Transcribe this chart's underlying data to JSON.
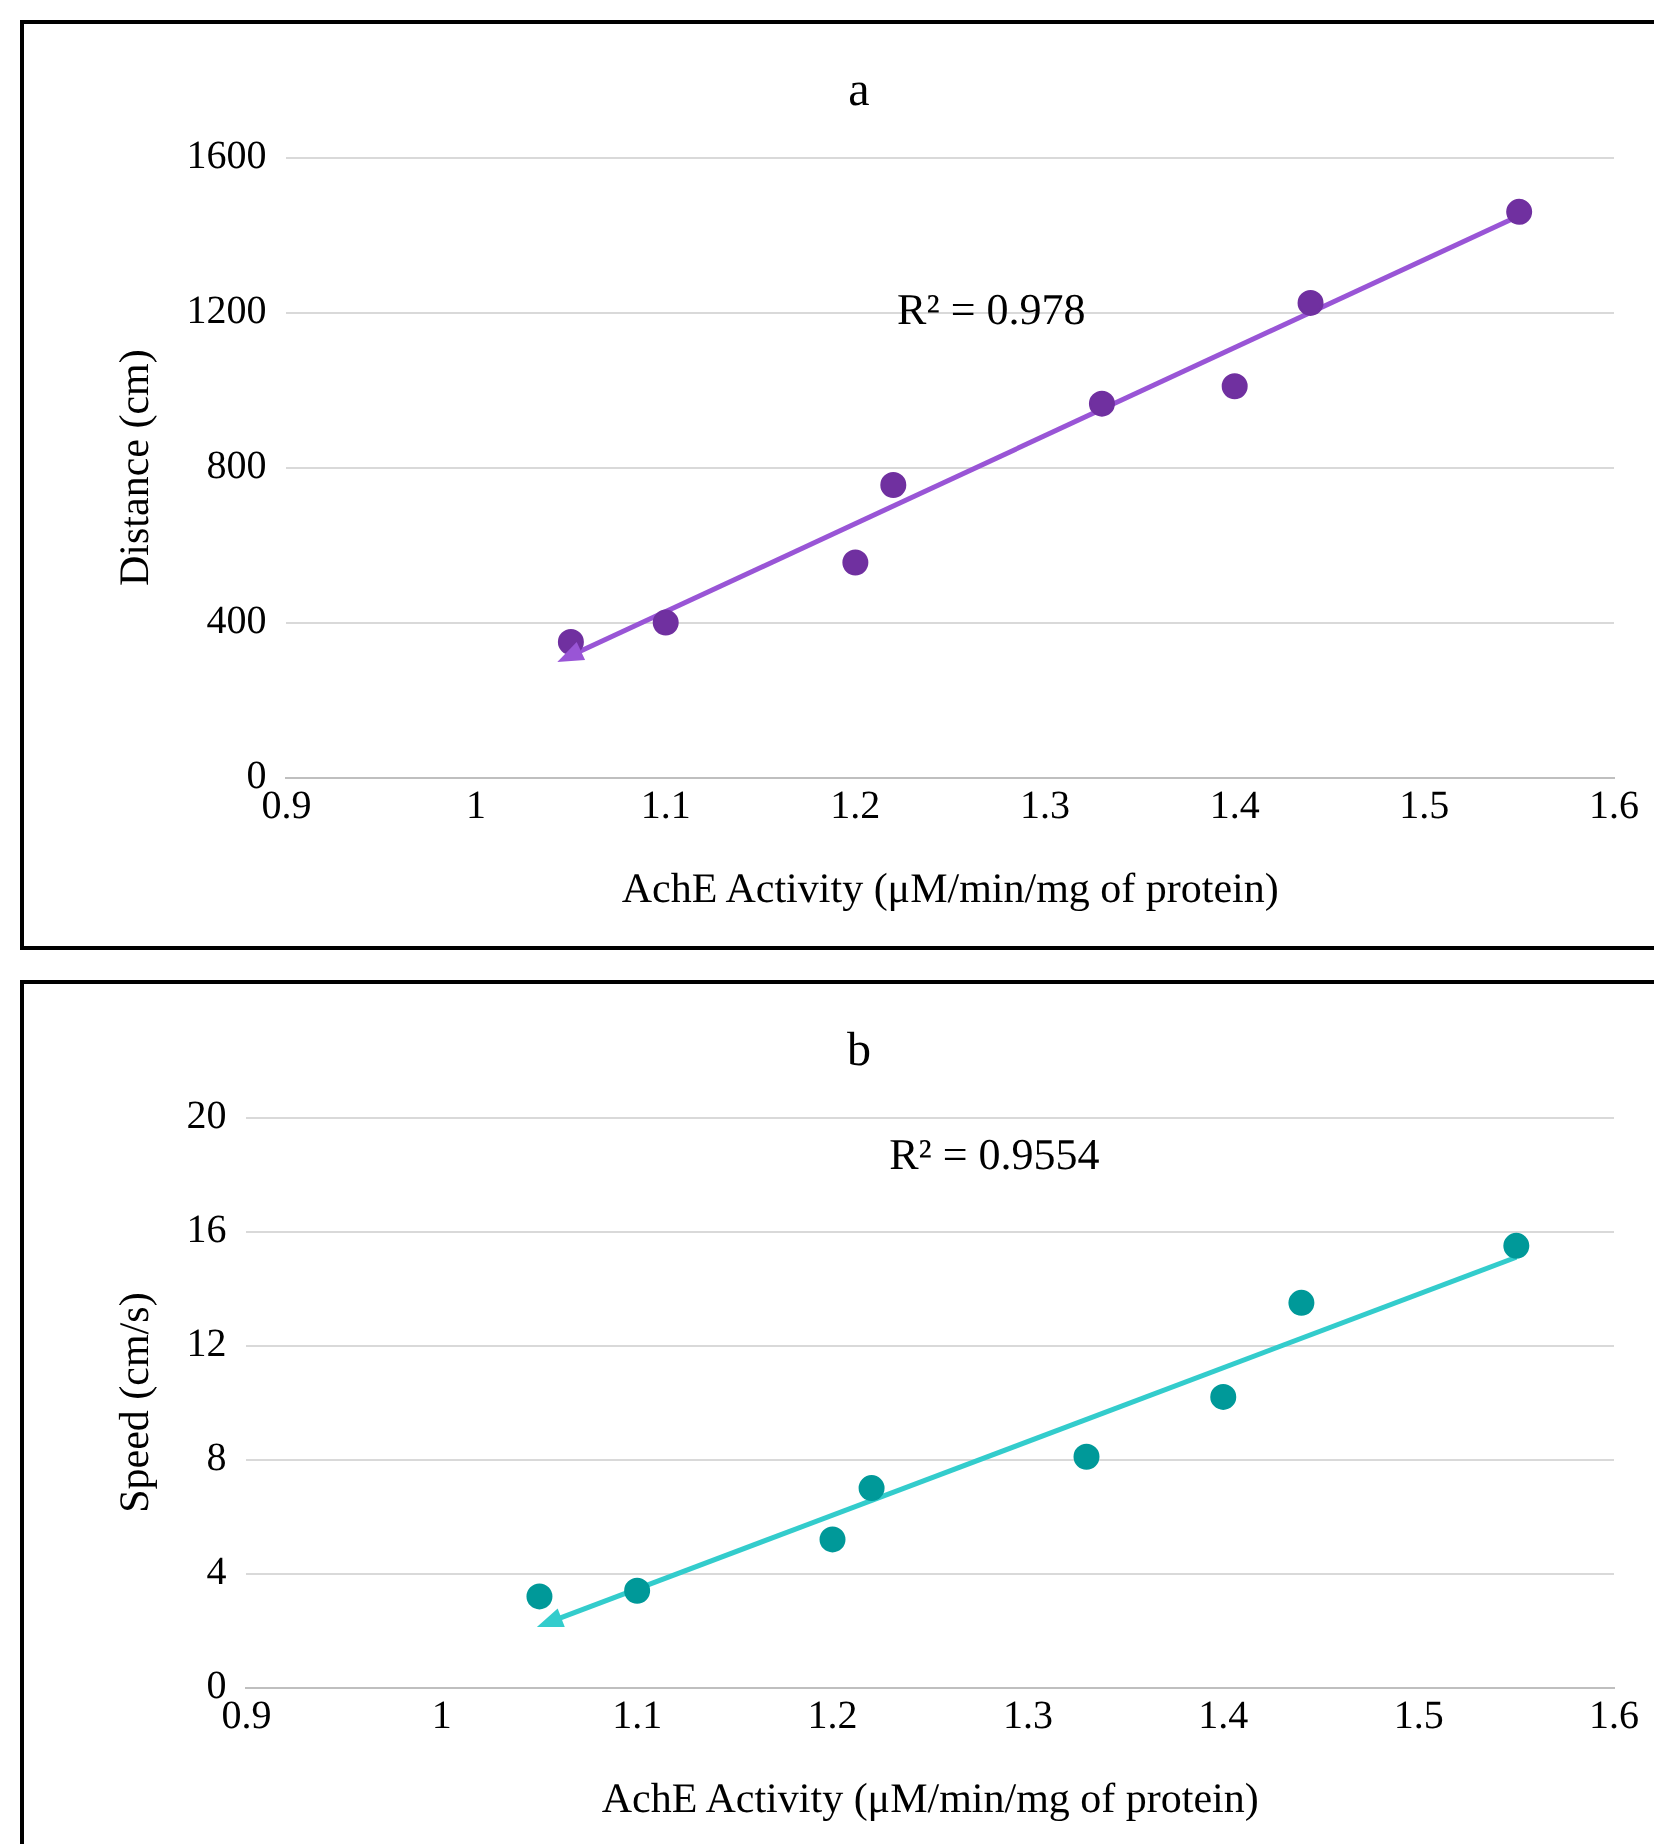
{
  "chart_data": [
    {
      "type": "scatter",
      "title": "a",
      "xlabel": "AchE Activity (μM/min/mg of protein)",
      "ylabel": "Distance (cm)",
      "x": [
        1.05,
        1.1,
        1.2,
        1.22,
        1.33,
        1.4,
        1.44,
        1.55
      ],
      "series": [
        {
          "color": "#7030a0",
          "marker": "circle",
          "values": [
            350,
            400,
            555,
            755,
            965,
            1010,
            1225,
            1460
          ]
        },
        {
          "type": "line",
          "color": "#9955d6",
          "x": [
            1.05,
            1.55
          ],
          "values": [
            315,
            1450
          ]
        }
      ],
      "xlim": [
        0.9,
        1.6
      ],
      "xticks": [
        0.9,
        1,
        1.1,
        1.2,
        1.3,
        1.4,
        1.5,
        1.6
      ],
      "ylim": [
        0,
        1600
      ],
      "yticks": [
        0,
        400,
        800,
        1200,
        1600
      ],
      "annotations": [
        "R² = 0.978"
      ],
      "grid": "y",
      "legend": false
    },
    {
      "type": "scatter",
      "title": "b",
      "xlabel": "AchE Activity (μM/min/mg of protein)",
      "ylabel": "Speed (cm/s)",
      "x": [
        1.05,
        1.1,
        1.2,
        1.22,
        1.33,
        1.4,
        1.44,
        1.55
      ],
      "series": [
        {
          "color": "#009999",
          "marker": "circle",
          "values": [
            3.2,
            3.4,
            5.2,
            7.0,
            8.1,
            10.2,
            13.5,
            15.5
          ]
        },
        {
          "type": "line",
          "color": "#33cccc",
          "x": [
            1.055,
            1.55
          ],
          "values": [
            2.3,
            15.1
          ]
        }
      ],
      "xlim": [
        0.9,
        1.6
      ],
      "xticks": [
        0.9,
        1,
        1.1,
        1.2,
        1.3,
        1.4,
        1.5,
        1.6
      ],
      "ylim": [
        0,
        20
      ],
      "yticks": [
        0,
        4,
        8,
        12,
        16,
        20
      ],
      "annotations": [
        "R² = 0.9554"
      ],
      "grid": "y",
      "legend": false
    }
  ]
}
